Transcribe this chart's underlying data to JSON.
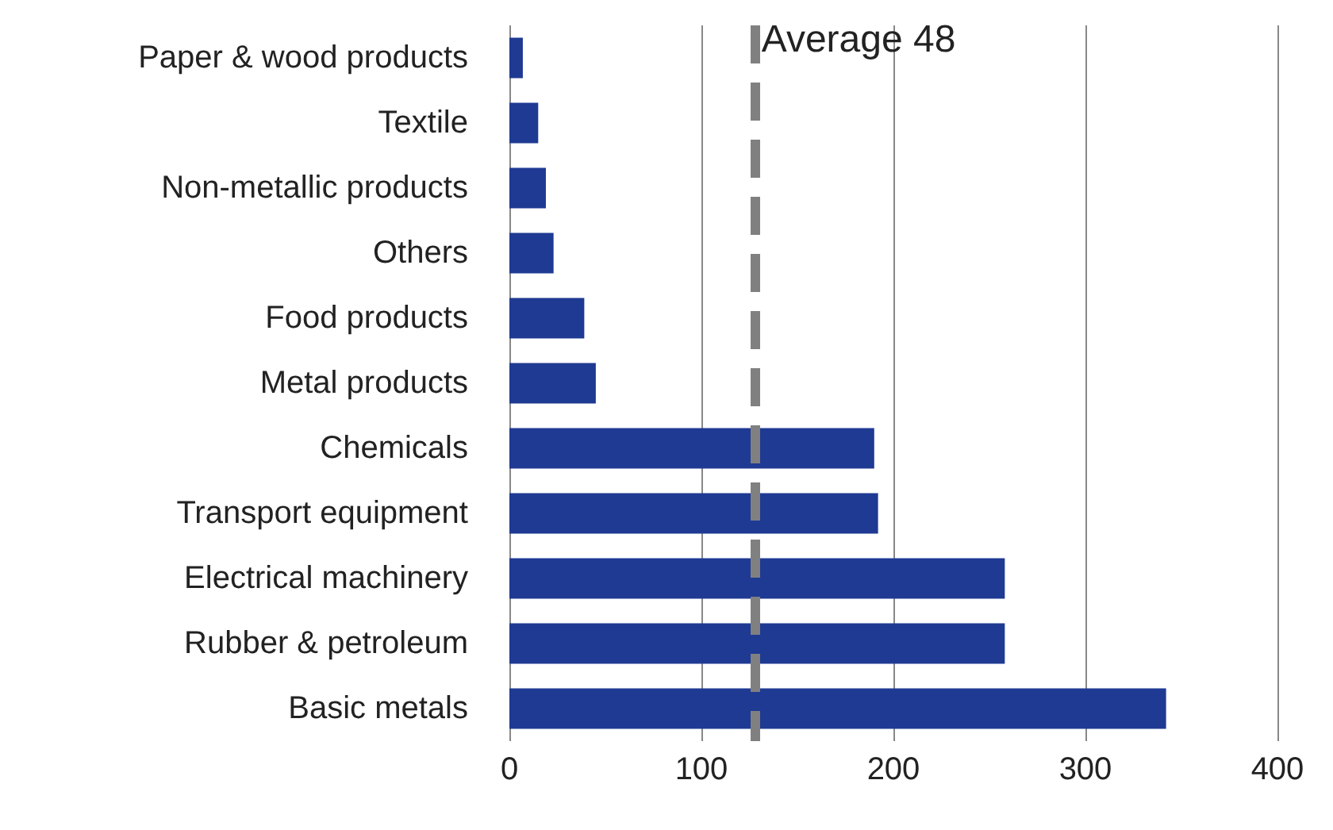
{
  "chart_data": {
    "type": "bar",
    "orientation": "horizontal",
    "categories": [
      "Paper & wood products",
      "Textile",
      "Non-metallic products",
      "Others",
      "Food products",
      "Metal products",
      "Chemicals",
      "Transport equipment",
      "Electrical machinery",
      "Rubber & petroleum",
      "Basic metals"
    ],
    "values": [
      7,
      15,
      19,
      23,
      39,
      45,
      190,
      192,
      258,
      258,
      342
    ],
    "color": "#1f3a93",
    "xlim": [
      0,
      400
    ],
    "xticks": [
      0,
      100,
      200,
      300,
      400
    ],
    "grid": "x",
    "ref_lines": [
      {
        "axis": "x",
        "value": 128,
        "label": "Average 48",
        "color": "#808080",
        "line_style": "dashed"
      }
    ]
  }
}
